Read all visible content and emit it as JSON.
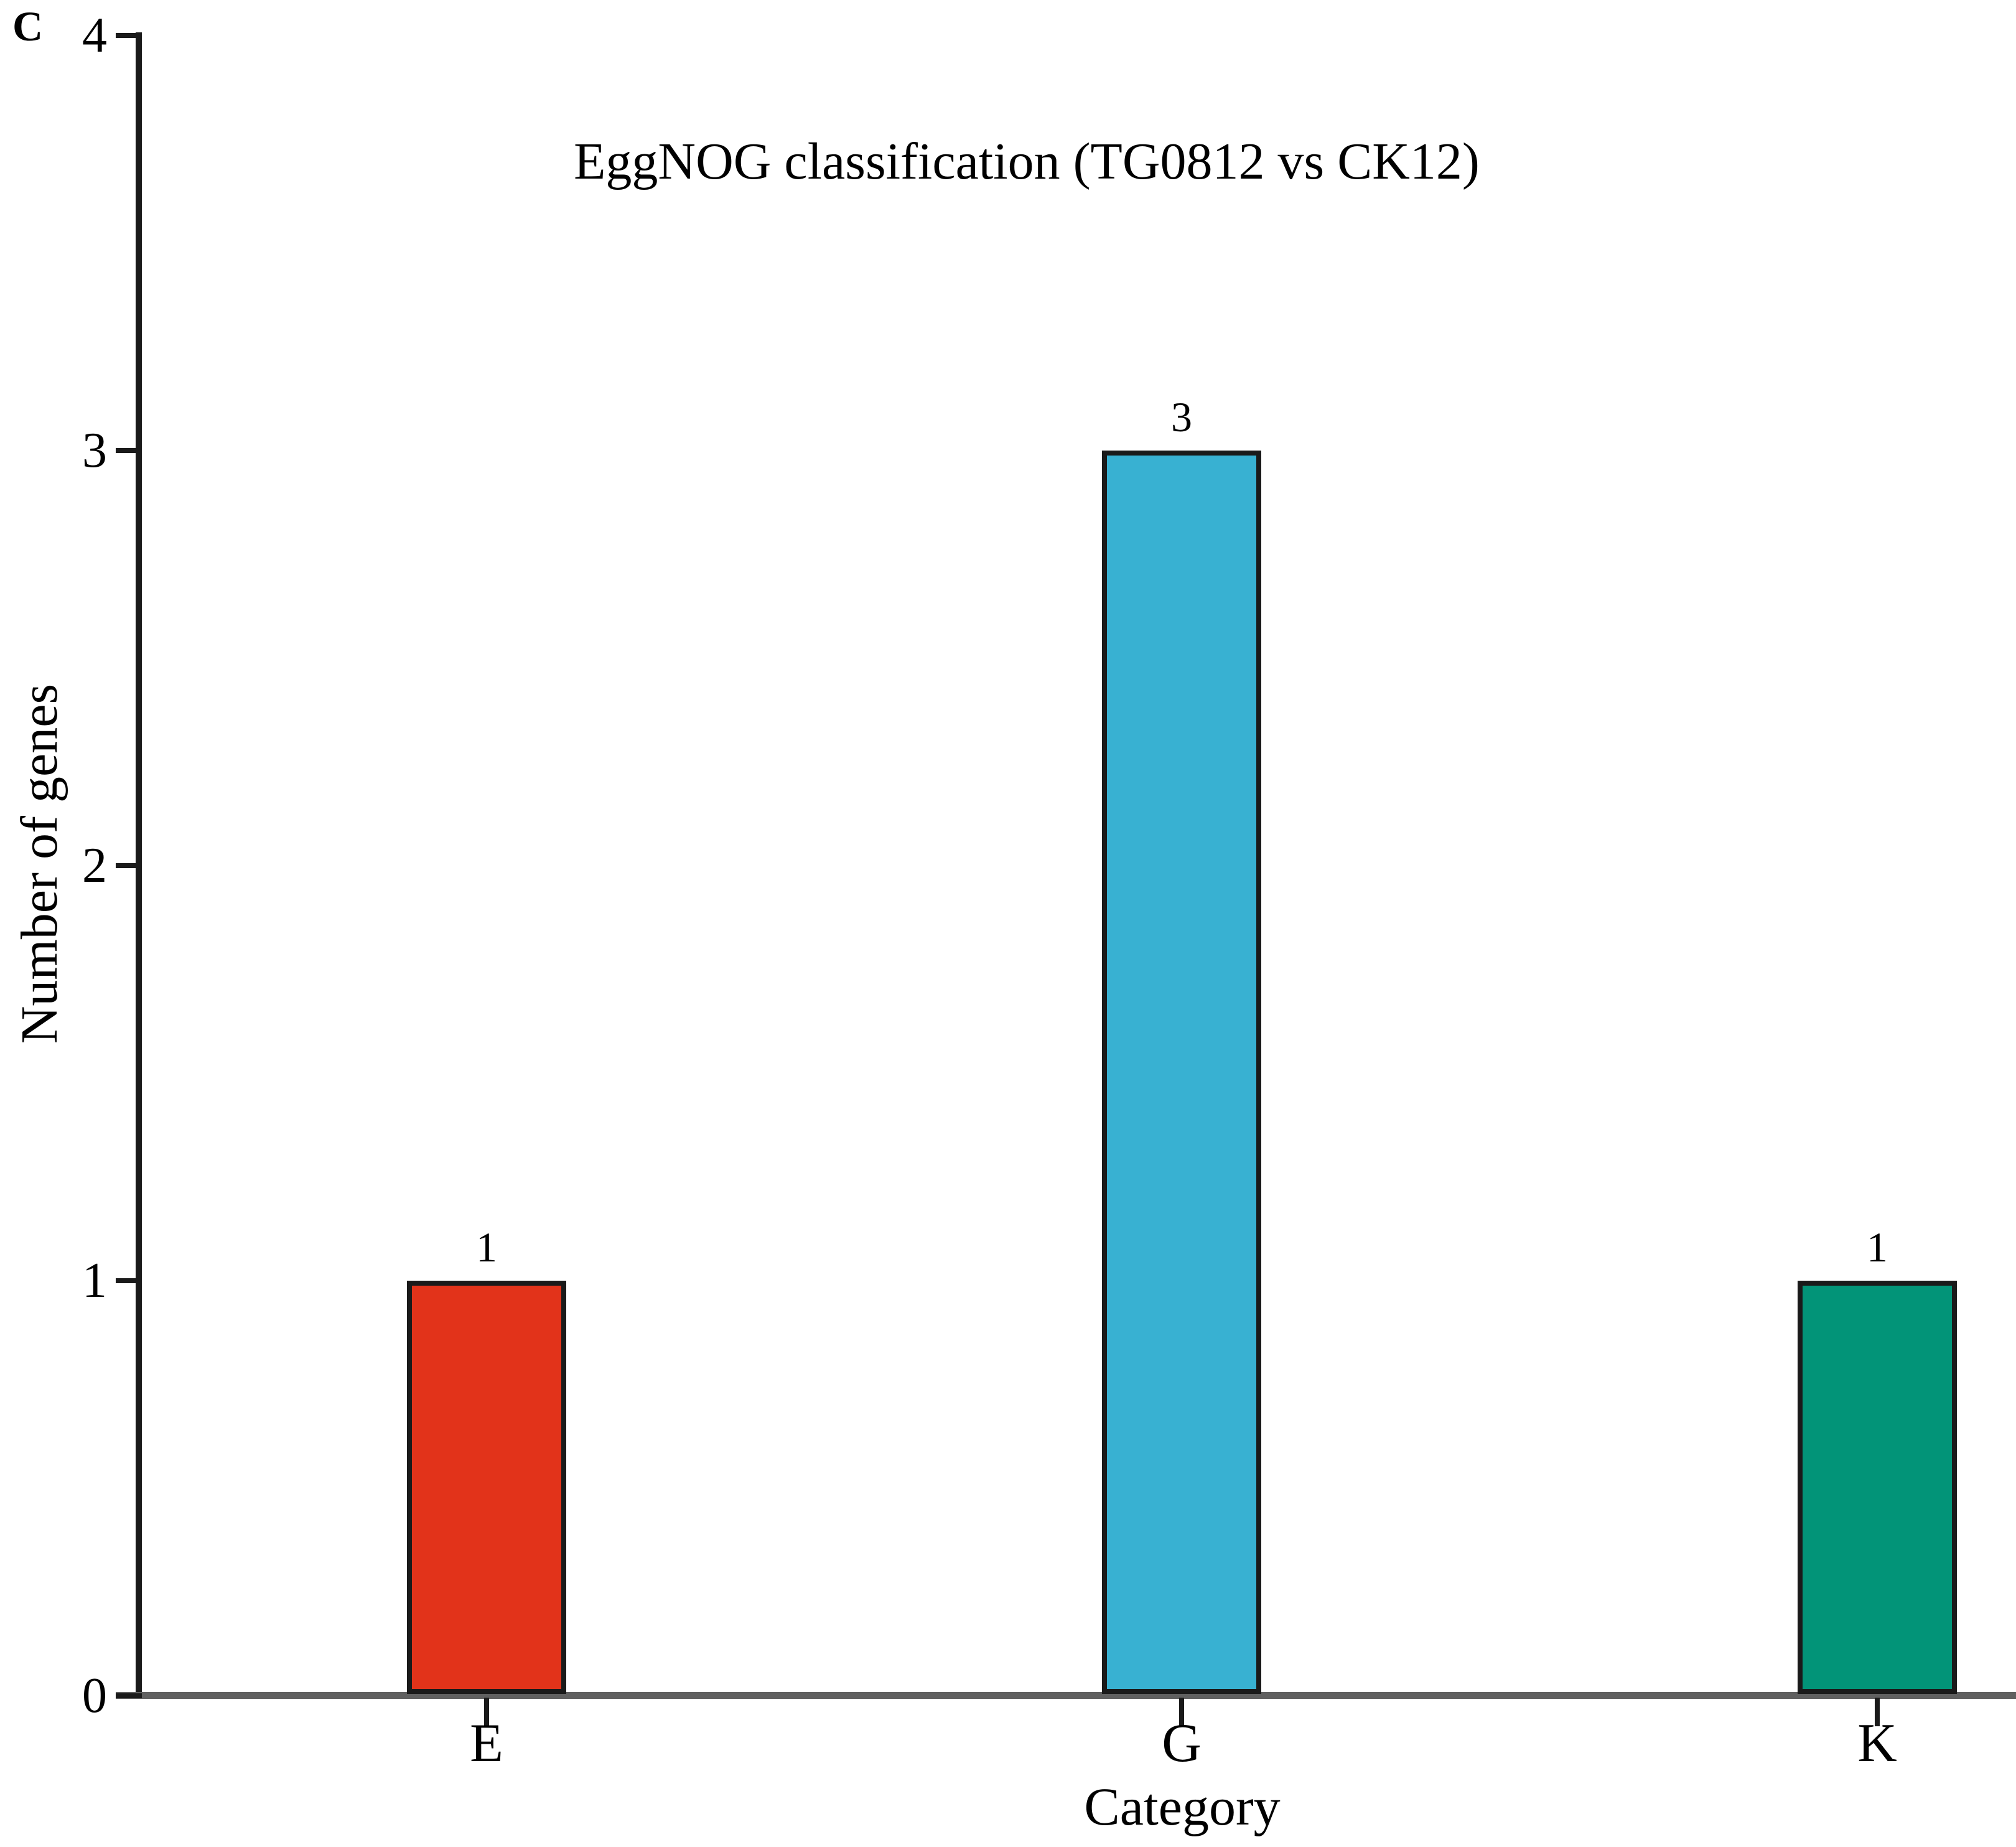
{
  "panel_label": "C",
  "chart_data": {
    "type": "bar",
    "title": "EggNOG classification (TG0812 vs CK12)",
    "xlabel": "Category",
    "ylabel": "Number of genes",
    "categories": [
      "E",
      "G",
      "K"
    ],
    "values": [
      1,
      3,
      1
    ],
    "bar_value_labels": [
      "1",
      "3",
      "1"
    ],
    "bar_colors": [
      "#e2331a",
      "#38b1d2",
      "#029478"
    ],
    "yticks": [
      "0",
      "1",
      "2",
      "3",
      "4"
    ],
    "ylim": [
      0,
      4
    ],
    "grid": false,
    "legend": "none"
  },
  "colors": {
    "y_axis": "#1a1a1a",
    "x_axis": "#606060",
    "bar_outline": "#1a1a1a",
    "text": "#000000"
  }
}
